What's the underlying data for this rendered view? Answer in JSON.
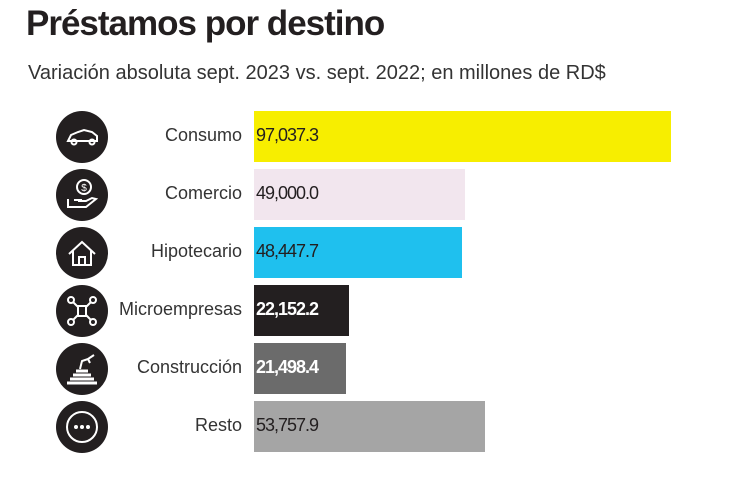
{
  "chart_data": {
    "type": "bar",
    "orientation": "horizontal",
    "title": "Préstamos por destino",
    "subtitle": "Variación absoluta sept. 2023 vs. sept. 2022; en millones de RD$",
    "categories": [
      "Consumo",
      "Comercio",
      "Hipotecario",
      "Microempresas",
      "Construcción",
      "Resto"
    ],
    "values": [
      97037.3,
      49000.0,
      48447.7,
      22152.2,
      21498.4,
      53757.9
    ],
    "value_labels": [
      "97,037.3",
      "49,000.0",
      "48,447.7",
      "22,152.2",
      "21,498.4",
      "53,757.9"
    ],
    "colors": [
      "#f7ee00",
      "#f2e6ee",
      "#1fc0ee",
      "#231f20",
      "#6b6b6b",
      "#a5a5a5"
    ],
    "label_colors": [
      "#231f20",
      "#231f20",
      "#231f20",
      "#ffffff",
      "#ffffff",
      "#231f20"
    ],
    "icons": [
      "car-icon",
      "money-hand-icon",
      "house-icon",
      "network-icon",
      "construction-icon",
      "more-icon"
    ],
    "grid": false,
    "legend": "none"
  }
}
